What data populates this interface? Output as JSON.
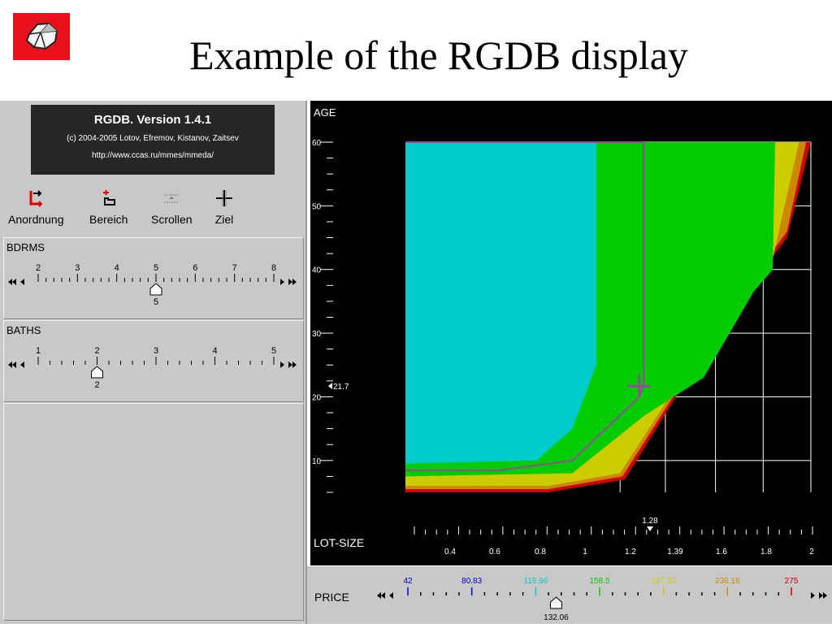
{
  "slide": {
    "title": "Example of the RGDB display"
  },
  "version_box": {
    "title": "RGDB. Version 1.4.1",
    "copyright": "(c) 2004-2005 Lotov, Efremov, Kistanov, Zaitsev",
    "url": "http://www.ccas.ru/mmes/mmeda/"
  },
  "toolbar": {
    "items": [
      {
        "label": "Anordnung",
        "icon": "arrange-icon"
      },
      {
        "label": "Bereich",
        "icon": "region-icon"
      },
      {
        "label": "Scrollen",
        "icon": "scroll-icon"
      },
      {
        "label": "Ziel",
        "icon": "crosshair-icon"
      }
    ]
  },
  "sliders": {
    "bdrms": {
      "label": "BDRMS",
      "ticks": [
        "2",
        "3",
        "4",
        "5",
        "6",
        "7",
        "8"
      ],
      "min": 2,
      "max": 8,
      "value": 5,
      "value_label": "5"
    },
    "baths": {
      "label": "BATHS",
      "ticks": [
        "1",
        "2",
        "3",
        "4",
        "5"
      ],
      "min": 1,
      "max": 5,
      "value": 2,
      "value_label": "2"
    }
  },
  "chart_data": {
    "type": "area",
    "ylabel": "AGE",
    "xlabel": "LOT-SIZE",
    "ylim": [
      5,
      60
    ],
    "xlim": [
      0.3,
      2
    ],
    "yticks": [
      "10",
      "20",
      "30",
      "40",
      "50",
      "60"
    ],
    "xticks": [
      "0.4",
      "0.6",
      "0.8",
      "1",
      "1.2",
      "1.39",
      "1.6",
      "1.8",
      "2"
    ],
    "current_x": 1.28,
    "current_x_label": "1.28",
    "current_y": 21.7,
    "current_y_label": "21.7",
    "grid": true,
    "zone_colors": [
      "#00cccc",
      "#00cc00",
      "#cccc00",
      "#cc8800",
      "#cc0000"
    ],
    "zones": [
      {
        "name": "",
        "color": "#cc0000",
        "points": [
          [
            0.3,
            5
          ],
          [
            0.9,
            5
          ],
          [
            1.22,
            7
          ],
          [
            1.6,
            30
          ],
          [
            1.9,
            45
          ],
          [
            2,
            60
          ],
          [
            0.3,
            60
          ]
        ]
      },
      {
        "name": "",
        "color": "#cc8800",
        "points": [
          [
            0.3,
            5.5
          ],
          [
            0.9,
            5.5
          ],
          [
            1.21,
            7.5
          ],
          [
            1.6,
            30.5
          ],
          [
            1.9,
            46
          ],
          [
            1.98,
            60
          ],
          [
            0.3,
            60
          ]
        ]
      },
      {
        "name": "",
        "color": "#cccc00",
        "points": [
          [
            0.3,
            6
          ],
          [
            0.9,
            6
          ],
          [
            1.2,
            8
          ],
          [
            1.58,
            30
          ],
          [
            1.83,
            40
          ],
          [
            1.95,
            60
          ],
          [
            0.3,
            60
          ]
        ]
      },
      {
        "name": "",
        "color": "#00cc00",
        "points": [
          [
            0.3,
            7.5
          ],
          [
            1,
            8
          ],
          [
            1.3,
            17
          ],
          [
            1.55,
            23
          ],
          [
            1.76,
            36.5
          ],
          [
            1.84,
            40
          ],
          [
            1.85,
            60
          ],
          [
            0.3,
            60
          ]
        ]
      },
      {
        "name": "",
        "color": "#00cccc",
        "points": [
          [
            0.3,
            9.5
          ],
          [
            0.85,
            10
          ],
          [
            1,
            15
          ],
          [
            1.1,
            25
          ],
          [
            1.1,
            60
          ],
          [
            0.3,
            60
          ]
        ]
      }
    ],
    "frontier_line": [
      [
        0.3,
        8.5
      ],
      [
        0.7,
        8.5
      ],
      [
        1,
        10
      ],
      [
        1.28,
        20
      ],
      [
        1.3,
        22
      ],
      [
        1.3,
        60
      ],
      [
        0.3,
        60
      ]
    ],
    "x_unit_value": 1.28,
    "y_unit_value": 21.7
  },
  "price": {
    "label": "PRICE",
    "ticks": [
      {
        "label": "42",
        "color": "#0000cc"
      },
      {
        "label": "80.83",
        "color": "#0000cc"
      },
      {
        "label": "119.66",
        "color": "#00cccc"
      },
      {
        "label": "158.5",
        "color": "#00cc00"
      },
      {
        "label": "197.33",
        "color": "#cccc00"
      },
      {
        "label": "236.16",
        "color": "#cc8800"
      },
      {
        "label": "275",
        "color": "#cc0000"
      }
    ],
    "min": 42,
    "max": 275,
    "value": 132.06,
    "value_label": "132.06"
  }
}
